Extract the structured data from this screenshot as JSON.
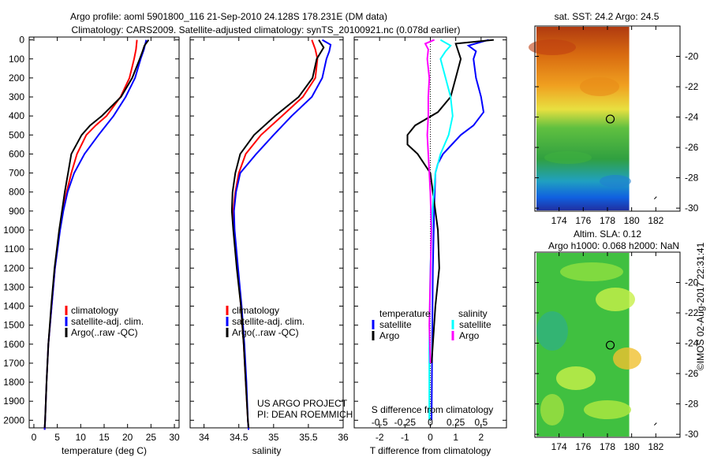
{
  "title_line1": "Argo profile: aoml 5901800_116 21-Sep-2010 24.128S 178.231E (DM data)",
  "title_line2": "Climatology: CARS2009. Satellite-adjusted climatology: synTS_20100921.nc (0.078d earlier)",
  "footer_stamp": "©IMOS 02-Aug-2017 22:31:41",
  "colors": {
    "climatology": "#ff0000",
    "satellite": "#0000ff",
    "argo": "#000000",
    "s_satellite": "#00ffff",
    "s_argo": "#ff00ff"
  },
  "chart_data": [
    {
      "type": "line",
      "id": "temperature",
      "xlabel": "temperature (deg C)",
      "xlim": [
        -1,
        31
      ],
      "ylim": [
        2040,
        -15
      ],
      "xticks": [
        0,
        5,
        10,
        15,
        20,
        25,
        30
      ],
      "yticks": [
        0,
        100,
        200,
        300,
        400,
        500,
        600,
        700,
        800,
        900,
        1000,
        1100,
        1200,
        1300,
        1400,
        1500,
        1600,
        1700,
        1800,
        1900,
        2000
      ],
      "legend": [
        "climatology",
        "satellite-adj. clim.",
        "Argo(..raw -QC)"
      ],
      "series": [
        {
          "name": "climatology",
          "color": "#ff0000",
          "points": [
            [
              0,
              22.0
            ],
            [
              50,
              21.8
            ],
            [
              100,
              21.4
            ],
            [
              200,
              20.4
            ],
            [
              300,
              18.5
            ],
            [
              400,
              15.5
            ],
            [
              450,
              13.2
            ],
            [
              500,
              11.2
            ],
            [
              600,
              9.2
            ],
            [
              700,
              8.0
            ],
            [
              800,
              7.0
            ],
            [
              900,
              6.2
            ],
            [
              1000,
              5.5
            ],
            [
              1200,
              4.5
            ],
            [
              1400,
              3.8
            ],
            [
              1600,
              3.1
            ],
            [
              1800,
              2.7
            ],
            [
              2000,
              2.4
            ],
            [
              2050,
              2.3
            ]
          ]
        },
        {
          "name": "satellite-adj. clim.",
          "color": "#0000ff",
          "points": [
            [
              0,
              24.0
            ],
            [
              50,
              23.5
            ],
            [
              100,
              22.8
            ],
            [
              200,
              21.6
            ],
            [
              300,
              19.6
            ],
            [
              400,
              17.0
            ],
            [
              500,
              13.8
            ],
            [
              600,
              10.8
            ],
            [
              700,
              8.6
            ],
            [
              800,
              7.2
            ],
            [
              900,
              6.3
            ],
            [
              1000,
              5.6
            ],
            [
              1200,
              4.5
            ],
            [
              1400,
              3.8
            ],
            [
              1600,
              3.1
            ],
            [
              1800,
              2.7
            ],
            [
              2000,
              2.4
            ],
            [
              2050,
              2.3
            ]
          ]
        },
        {
          "name": "Argo(..raw -QC)",
          "color": "#000000",
          "points": [
            [
              0,
              24.5
            ],
            [
              30,
              23.6
            ],
            [
              60,
              23.2
            ],
            [
              100,
              22.6
            ],
            [
              200,
              21.0
            ],
            [
              300,
              18.6
            ],
            [
              400,
              14.5
            ],
            [
              450,
              12.0
            ],
            [
              500,
              10.2
            ],
            [
              600,
              8.0
            ],
            [
              700,
              7.3
            ],
            [
              800,
              6.6
            ],
            [
              900,
              6.0
            ],
            [
              1000,
              5.4
            ],
            [
              1200,
              4.4
            ],
            [
              1400,
              3.7
            ],
            [
              1600,
              3.1
            ],
            [
              1800,
              2.7
            ],
            [
              2000,
              2.4
            ],
            [
              2040,
              2.3
            ]
          ]
        }
      ]
    },
    {
      "type": "line",
      "id": "salinity",
      "xlabel": "salinity",
      "xlim": [
        33.8,
        36.0
      ],
      "ylim": [
        2040,
        -15
      ],
      "xticks": [
        34,
        34.5,
        35,
        35.5,
        36
      ],
      "legend": [
        "climatology",
        "satellite-adj. clim.",
        "Argo(..raw -QC)"
      ],
      "annotation": [
        "US ARGO PROJECT",
        "PI: DEAN ROEMMICH"
      ],
      "series": [
        {
          "name": "climatology",
          "color": "#ff0000",
          "points": [
            [
              0,
              35.55
            ],
            [
              50,
              35.6
            ],
            [
              100,
              35.63
            ],
            [
              200,
              35.6
            ],
            [
              300,
              35.42
            ],
            [
              400,
              35.12
            ],
            [
              500,
              34.82
            ],
            [
              600,
              34.6
            ],
            [
              700,
              34.5
            ],
            [
              800,
              34.45
            ],
            [
              900,
              34.42
            ],
            [
              1000,
              34.43
            ],
            [
              1200,
              34.48
            ],
            [
              1400,
              34.53
            ],
            [
              1600,
              34.57
            ],
            [
              1800,
              34.6
            ],
            [
              2000,
              34.63
            ],
            [
              2050,
              34.64
            ]
          ]
        },
        {
          "name": "satellite-adj. clim.",
          "color": "#0000ff",
          "points": [
            [
              0,
              35.7
            ],
            [
              25,
              35.82
            ],
            [
              60,
              35.8
            ],
            [
              100,
              35.76
            ],
            [
              200,
              35.7
            ],
            [
              300,
              35.55
            ],
            [
              400,
              35.26
            ],
            [
              500,
              35.0
            ],
            [
              600,
              34.75
            ],
            [
              700,
              34.52
            ],
            [
              800,
              34.46
            ],
            [
              900,
              34.43
            ],
            [
              1000,
              34.44
            ],
            [
              1200,
              34.49
            ],
            [
              1400,
              34.54
            ],
            [
              1600,
              34.58
            ],
            [
              1800,
              34.61
            ],
            [
              2000,
              34.63
            ],
            [
              2050,
              34.64
            ]
          ]
        },
        {
          "name": "Argo(..raw -QC)",
          "color": "#000000",
          "points": [
            [
              0,
              35.65
            ],
            [
              40,
              35.72
            ],
            [
              100,
              35.62
            ],
            [
              200,
              35.56
            ],
            [
              300,
              35.36
            ],
            [
              400,
              35.02
            ],
            [
              500,
              34.72
            ],
            [
              600,
              34.52
            ],
            [
              700,
              34.45
            ],
            [
              800,
              34.41
            ],
            [
              900,
              34.4
            ],
            [
              1000,
              34.42
            ],
            [
              1200,
              34.47
            ],
            [
              1400,
              34.53
            ],
            [
              1600,
              34.57
            ],
            [
              1800,
              34.6
            ],
            [
              2000,
              34.63
            ],
            [
              2040,
              34.64
            ]
          ]
        }
      ]
    },
    {
      "type": "line",
      "id": "difference",
      "xlabel": "T difference from climatology",
      "xlabel2": "S difference from climatology",
      "xlim": [
        -3,
        3
      ],
      "ylim": [
        2040,
        -15
      ],
      "xticks": [
        -2,
        -1,
        0,
        1,
        2
      ],
      "xticks2": [
        -0.5,
        -0.25,
        0,
        0.25,
        0.5
      ],
      "xticks2_labels": [
        "-0.5",
        "-0.25",
        "0",
        "0.25",
        "0.5"
      ],
      "s_scale": 4,
      "legend_headers": [
        "temperature",
        "salinity"
      ],
      "legend": [
        "satellite",
        "Argo",
        "satellite",
        "Argo"
      ],
      "series": [
        {
          "name": "T satellite",
          "color": "#0000ff",
          "kind": "T",
          "points": [
            [
              0,
              2.3
            ],
            [
              30,
              1.5
            ],
            [
              60,
              1.8
            ],
            [
              100,
              1.7
            ],
            [
              200,
              1.8
            ],
            [
              300,
              2.0
            ],
            [
              380,
              2.1
            ],
            [
              450,
              1.7
            ],
            [
              500,
              1.2
            ],
            [
              600,
              0.5
            ],
            [
              650,
              0.3
            ],
            [
              700,
              0.2
            ],
            [
              900,
              0.15
            ],
            [
              1200,
              0.1
            ],
            [
              1600,
              0.07
            ],
            [
              2000,
              0.05
            ]
          ]
        },
        {
          "name": "T Argo",
          "color": "#000000",
          "kind": "T",
          "points": [
            [
              0,
              2.5
            ],
            [
              20,
              1.0
            ],
            [
              60,
              1.1
            ],
            [
              100,
              1.2
            ],
            [
              200,
              1.0
            ],
            [
              300,
              0.8
            ],
            [
              380,
              0.3
            ],
            [
              450,
              -0.6
            ],
            [
              500,
              -0.9
            ],
            [
              550,
              -0.9
            ],
            [
              600,
              -0.5
            ],
            [
              700,
              0.0
            ],
            [
              800,
              0.1
            ],
            [
              900,
              0.2
            ],
            [
              1000,
              0.3
            ],
            [
              1200,
              0.35
            ],
            [
              1400,
              0.2
            ],
            [
              1600,
              0.1
            ],
            [
              1700,
              0.05
            ]
          ]
        },
        {
          "name": "S satellite",
          "color": "#00ffff",
          "kind": "S",
          "points": [
            [
              0,
              0.1
            ],
            [
              30,
              0.2
            ],
            [
              60,
              0.15
            ],
            [
              100,
              0.1
            ],
            [
              200,
              0.15
            ],
            [
              300,
              0.2
            ],
            [
              400,
              0.22
            ],
            [
              500,
              0.18
            ],
            [
              600,
              0.1
            ],
            [
              700,
              0.05
            ],
            [
              900,
              0.02
            ],
            [
              1200,
              0.0
            ],
            [
              1600,
              -0.01
            ],
            [
              2000,
              -0.01
            ]
          ]
        },
        {
          "name": "S Argo",
          "color": "#ff00ff",
          "kind": "S",
          "points": [
            [
              0,
              0.04
            ],
            [
              20,
              -0.05
            ],
            [
              50,
              -0.02
            ],
            [
              100,
              -0.03
            ],
            [
              200,
              -0.01
            ],
            [
              300,
              -0.02
            ],
            [
              400,
              -0.02
            ],
            [
              500,
              -0.03
            ],
            [
              600,
              -0.02
            ],
            [
              800,
              0.0
            ],
            [
              1000,
              0.01
            ],
            [
              1500,
              -0.01
            ],
            [
              1700,
              0.0
            ]
          ]
        }
      ]
    },
    {
      "type": "heatmap",
      "id": "sst-map",
      "title": "sat. SST: 24.2  Argo: 24.5",
      "xlim": [
        172,
        184
      ],
      "ylim": [
        -30.2,
        -18
      ],
      "xticks": [
        174,
        176,
        178,
        180,
        182
      ],
      "yticks": [
        -20,
        -22,
        -24,
        -26,
        -28,
        -30
      ],
      "argo_position": [
        178.231,
        -24.128
      ]
    },
    {
      "type": "heatmap",
      "id": "sla-map",
      "title": "Altim. SLA: 0.12",
      "subtitle": "Argo h1000: 0.068 h2000: NaN",
      "xlim": [
        172,
        184
      ],
      "ylim": [
        -30.2,
        -18
      ],
      "xticks": [
        174,
        176,
        178,
        180,
        182
      ],
      "yticks": [
        -20,
        -22,
        -24,
        -26,
        -28,
        -30
      ],
      "argo_position": [
        178.231,
        -24.128
      ]
    }
  ]
}
